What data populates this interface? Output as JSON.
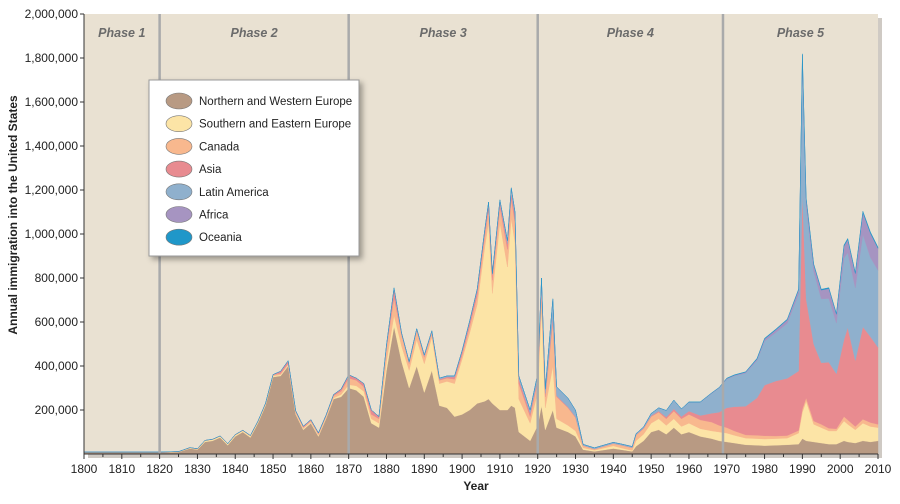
{
  "chart_data": {
    "type": "area",
    "ylabel": "Annual immigration into the United States",
    "xlabel": "Year",
    "xlim": [
      1800,
      2010
    ],
    "ylim": [
      0,
      2000000
    ],
    "x_ticks": [
      "1800",
      "1810",
      "1820",
      "1830",
      "1840",
      "1850",
      "1860",
      "1870",
      "1880",
      "1890",
      "1900",
      "1910",
      "1920",
      "1930",
      "1940",
      "1950",
      "1960",
      "1970",
      "1980",
      "1990",
      "2000",
      "2010"
    ],
    "x_tick_values": [
      1800,
      1810,
      1820,
      1830,
      1840,
      1850,
      1860,
      1870,
      1880,
      1890,
      1900,
      1910,
      1920,
      1930,
      1940,
      1950,
      1960,
      1970,
      1980,
      1990,
      2000,
      2010
    ],
    "y_ticks": [
      "200,000",
      "400,000",
      "600,000",
      "800,000",
      "1,000,000",
      "1,200,000",
      "1,400,000",
      "1,600,000",
      "1,800,000",
      "2,000,000"
    ],
    "y_tick_values": [
      200000,
      400000,
      600000,
      800000,
      1000000,
      1200000,
      1400000,
      1600000,
      1800000,
      2000000
    ],
    "phases": [
      {
        "label": "Phase 1",
        "start": 1800,
        "end": 1820
      },
      {
        "label": "Phase 2",
        "start": 1820,
        "end": 1870
      },
      {
        "label": "Phase 3",
        "start": 1870,
        "end": 1920
      },
      {
        "label": "Phase 4",
        "start": 1920,
        "end": 1969
      },
      {
        "label": "Phase 5",
        "start": 1969,
        "end": 2010
      }
    ],
    "legend_position": "top-left",
    "x": [
      1800,
      1819,
      1820,
      1825,
      1828,
      1830,
      1832,
      1834,
      1836,
      1838,
      1840,
      1842,
      1844,
      1846,
      1848,
      1850,
      1852,
      1854,
      1856,
      1858,
      1860,
      1862,
      1864,
      1866,
      1868,
      1870,
      1872,
      1874,
      1876,
      1878,
      1880,
      1882,
      1884,
      1886,
      1888,
      1890,
      1892,
      1894,
      1896,
      1898,
      1900,
      1902,
      1904,
      1906,
      1907,
      1908,
      1910,
      1912,
      1913,
      1914,
      1915,
      1918,
      1920,
      1921,
      1922,
      1924,
      1925,
      1928,
      1930,
      1932,
      1935,
      1940,
      1942,
      1945,
      1946,
      1948,
      1950,
      1952,
      1954,
      1956,
      1958,
      1960,
      1963,
      1966,
      1968,
      1970,
      1972,
      1975,
      1978,
      1980,
      1983,
      1986,
      1989,
      1990,
      1991,
      1993,
      1995,
      1997,
      1999,
      2001,
      2002,
      2004,
      2006,
      2008,
      2010
    ],
    "series": [
      {
        "name": "Northern and Western Europe",
        "color": "#b89a83",
        "values": [
          8000,
          8000,
          8000,
          9000,
          25000,
          20000,
          55000,
          60000,
          75000,
          40000,
          80000,
          100000,
          75000,
          140000,
          220000,
          350000,
          355000,
          400000,
          180000,
          110000,
          140000,
          80000,
          160000,
          250000,
          260000,
          300000,
          290000,
          260000,
          140000,
          120000,
          380000,
          580000,
          420000,
          300000,
          400000,
          280000,
          380000,
          220000,
          210000,
          170000,
          180000,
          200000,
          230000,
          240000,
          250000,
          230000,
          200000,
          200000,
          220000,
          210000,
          100000,
          60000,
          130000,
          220000,
          110000,
          200000,
          120000,
          100000,
          80000,
          20000,
          12000,
          25000,
          20000,
          12000,
          35000,
          60000,
          100000,
          110000,
          90000,
          120000,
          90000,
          100000,
          80000,
          70000,
          60000,
          55000,
          50000,
          42000,
          40000,
          38000,
          40000,
          42000,
          45000,
          70000,
          60000,
          55000,
          50000,
          45000,
          45000,
          60000,
          55000,
          50000,
          60000,
          55000,
          60000
        ]
      },
      {
        "name": "Southern and Eastern Europe",
        "color": "#fce4a6",
        "values": [
          1000,
          1000,
          1000,
          1000,
          2000,
          2000,
          5000,
          5000,
          5000,
          5000,
          5000,
          5000,
          5000,
          5000,
          5000,
          5000,
          5000,
          5000,
          5000,
          5000,
          5000,
          5000,
          5000,
          5000,
          10000,
          15000,
          20000,
          25000,
          20000,
          20000,
          40000,
          50000,
          70000,
          80000,
          120000,
          130000,
          150000,
          100000,
          120000,
          150000,
          250000,
          350000,
          450000,
          700000,
          800000,
          500000,
          850000,
          650000,
          850000,
          750000,
          150000,
          80000,
          150000,
          450000,
          100000,
          200000,
          40000,
          30000,
          25000,
          8000,
          5000,
          12000,
          8000,
          4000,
          25000,
          30000,
          40000,
          50000,
          40000,
          40000,
          35000,
          40000,
          35000,
          35000,
          40000,
          40000,
          35000,
          30000,
          30000,
          30000,
          30000,
          30000,
          50000,
          120000,
          180000,
          80000,
          70000,
          60000,
          60000,
          90000,
          80000,
          60000,
          80000,
          70000,
          60000
        ]
      },
      {
        "name": "Canada",
        "color": "#f8b88e",
        "values": [
          0,
          0,
          0,
          1000,
          2000,
          2000,
          2000,
          2000,
          2000,
          2000,
          3000,
          3000,
          4000,
          4000,
          5000,
          5000,
          6000,
          6000,
          6000,
          6000,
          6000,
          6000,
          6000,
          10000,
          15000,
          30000,
          25000,
          20000,
          20000,
          20000,
          60000,
          80000,
          50000,
          30000,
          40000,
          30000,
          20000,
          15000,
          15000,
          20000,
          20000,
          30000,
          40000,
          50000,
          60000,
          60000,
          70000,
          80000,
          90000,
          90000,
          70000,
          30000,
          50000,
          80000,
          50000,
          200000,
          100000,
          80000,
          60000,
          10000,
          5000,
          10000,
          12000,
          12000,
          25000,
          25000,
          30000,
          30000,
          30000,
          35000,
          35000,
          40000,
          40000,
          40000,
          30000,
          25000,
          20000,
          15000,
          15000,
          15000,
          12000,
          12000,
          12000,
          15000,
          15000,
          15000,
          15000,
          12000,
          10000,
          20000,
          20000,
          15000,
          18000,
          18000,
          15000
        ]
      },
      {
        "name": "Asia",
        "color": "#e88b90",
        "values": [
          0,
          0,
          0,
          0,
          0,
          0,
          0,
          0,
          0,
          0,
          0,
          0,
          0,
          0,
          0,
          1000,
          10000,
          13000,
          5000,
          5000,
          5000,
          5000,
          5000,
          5000,
          10000,
          15000,
          10000,
          15000,
          20000,
          10000,
          10000,
          40000,
          5000,
          5000,
          5000,
          5000,
          5000,
          5000,
          5000,
          10000,
          15000,
          20000,
          25000,
          25000,
          30000,
          25000,
          25000,
          25000,
          30000,
          30000,
          20000,
          15000,
          15000,
          20000,
          15000,
          25000,
          5000,
          4000,
          4000,
          1000,
          1000,
          1000,
          1000,
          1000,
          2000,
          3000,
          4000,
          5000,
          8000,
          10000,
          10000,
          15000,
          20000,
          40000,
          60000,
          90000,
          110000,
          130000,
          170000,
          230000,
          250000,
          260000,
          270000,
          990000,
          450000,
          350000,
          280000,
          300000,
          250000,
          350000,
          420000,
          300000,
          420000,
          390000,
          350000
        ]
      },
      {
        "name": "Latin America",
        "color": "#8fb0cd",
        "values": [
          0,
          0,
          0,
          0,
          0,
          0,
          0,
          0,
          0,
          0,
          0,
          0,
          0,
          0,
          0,
          0,
          0,
          0,
          0,
          0,
          0,
          0,
          0,
          0,
          0,
          0,
          0,
          0,
          0,
          0,
          5000,
          5000,
          5000,
          5000,
          5000,
          5000,
          5000,
          5000,
          5000,
          5000,
          5000,
          5000,
          5000,
          5000,
          5000,
          5000,
          10000,
          15000,
          20000,
          20000,
          15000,
          15000,
          20000,
          30000,
          20000,
          80000,
          40000,
          40000,
          30000,
          5000,
          5000,
          5000,
          5000,
          5000,
          5000,
          5000,
          10000,
          15000,
          30000,
          40000,
          35000,
          40000,
          60000,
          90000,
          110000,
          130000,
          140000,
          150000,
          170000,
          200000,
          220000,
          250000,
          350000,
          590000,
          420000,
          330000,
          290000,
          290000,
          230000,
          370000,
          340000,
          330000,
          420000,
          360000,
          350000
        ]
      },
      {
        "name": "Africa",
        "color": "#a694c1",
        "values": [
          0,
          0,
          0,
          0,
          0,
          0,
          0,
          0,
          0,
          0,
          0,
          0,
          0,
          0,
          0,
          0,
          0,
          0,
          0,
          0,
          0,
          0,
          0,
          0,
          0,
          0,
          0,
          0,
          0,
          0,
          0,
          0,
          0,
          0,
          0,
          0,
          0,
          0,
          0,
          0,
          0,
          0,
          0,
          0,
          0,
          0,
          0,
          0,
          0,
          0,
          0,
          0,
          0,
          0,
          0,
          0,
          0,
          0,
          0,
          0,
          0,
          0,
          0,
          0,
          0,
          0,
          0,
          0,
          0,
          0,
          0,
          1000,
          1000,
          2000,
          2000,
          3000,
          3000,
          5000,
          7000,
          10000,
          13000,
          16000,
          20000,
          30000,
          35000,
          30000,
          40000,
          45000,
          40000,
          55000,
          60000,
          65000,
          100000,
          110000,
          100000
        ]
      },
      {
        "name": "Oceania",
        "color": "#1f97c9",
        "values": [
          0,
          0,
          0,
          0,
          0,
          0,
          0,
          0,
          0,
          0,
          0,
          0,
          0,
          0,
          0,
          0,
          0,
          0,
          0,
          0,
          0,
          0,
          0,
          0,
          0,
          0,
          0,
          0,
          0,
          0,
          0,
          0,
          0,
          0,
          0,
          0,
          0,
          0,
          0,
          0,
          0,
          0,
          0,
          0,
          0,
          0,
          0,
          0,
          0,
          0,
          0,
          0,
          0,
          0,
          0,
          0,
          0,
          0,
          0,
          0,
          0,
          0,
          0,
          0,
          0,
          0,
          0,
          0,
          0,
          0,
          0,
          1000,
          1000,
          1000,
          1000,
          2000,
          2000,
          2000,
          3000,
          3000,
          3000,
          3000,
          3000,
          4000,
          4000,
          4000,
          4000,
          4000,
          4000,
          5000,
          5000,
          5000,
          6000,
          6000,
          5000
        ]
      }
    ]
  }
}
